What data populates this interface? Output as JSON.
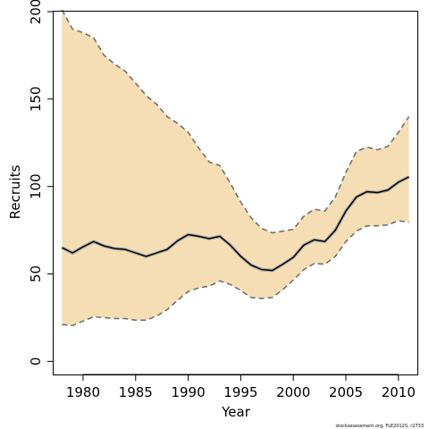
{
  "chart_data": {
    "type": "line",
    "title": "",
    "xlabel": "Year",
    "ylabel": "Recruits",
    "xlim": [
      1977.2,
      2011.8
    ],
    "ylim": [
      -7.5,
      200
    ],
    "x_ticks": [
      1980,
      1985,
      1990,
      1995,
      2000,
      2005,
      2010
    ],
    "x_tick_labels": [
      "1980",
      "1985",
      "1990",
      "1995",
      "2000",
      "2005",
      "2010"
    ],
    "y_ticks": [
      0,
      50,
      100,
      150,
      200
    ],
    "y_tick_labels": [
      "0",
      "50",
      "100",
      "150",
      "200"
    ],
    "grid": false,
    "legend": false,
    "colors": {
      "band_fill": "#f5deb3",
      "median_line": "#000000",
      "median_halo": "#a0a0a0",
      "interval_line": "#707070"
    },
    "x": [
      1978,
      1979,
      1980,
      1981,
      1982,
      1983,
      1984,
      1985,
      1986,
      1987,
      1988,
      1989,
      1990,
      1991,
      1992,
      1993,
      1994,
      1995,
      1996,
      1997,
      1998,
      1999,
      2000,
      2001,
      2002,
      2003,
      2004,
      2005,
      2006,
      2007,
      2008,
      2009,
      2010,
      2011
    ],
    "series": [
      {
        "role": "estimate",
        "values": [
          65,
          62,
          65.5,
          68.5,
          66,
          64.5,
          64,
          62,
          60,
          62,
          64,
          69,
          72.5,
          71.5,
          70.2,
          71.5,
          66.5,
          60,
          55,
          52.5,
          52,
          55.5,
          59.5,
          66.5,
          69.5,
          68.5,
          75,
          86,
          94,
          97,
          96.5,
          98,
          102.5,
          105.5
        ]
      },
      {
        "role": "upper interval",
        "values": [
          201,
          190,
          188,
          185,
          175,
          170,
          166,
          159,
          152,
          147,
          140,
          136,
          131,
          122,
          114,
          112,
          102,
          91,
          82,
          76,
          73.5,
          74.5,
          75.5,
          83,
          87,
          86,
          94,
          108,
          120,
          122.5,
          121,
          123,
          131,
          140
        ]
      },
      {
        "role": "lower interval",
        "values": [
          21,
          20.5,
          23,
          25.5,
          25,
          24.5,
          24.5,
          23.5,
          23.5,
          26,
          29.5,
          35,
          40,
          42,
          43,
          46,
          44,
          40.5,
          36.5,
          36,
          36.5,
          41,
          46.5,
          52.5,
          56,
          55.5,
          60,
          68.5,
          74.5,
          77.5,
          77.5,
          78,
          80.5,
          79.5
        ]
      }
    ]
  },
  "footnote": "stockassessment.org, FLE2012S, r2733"
}
